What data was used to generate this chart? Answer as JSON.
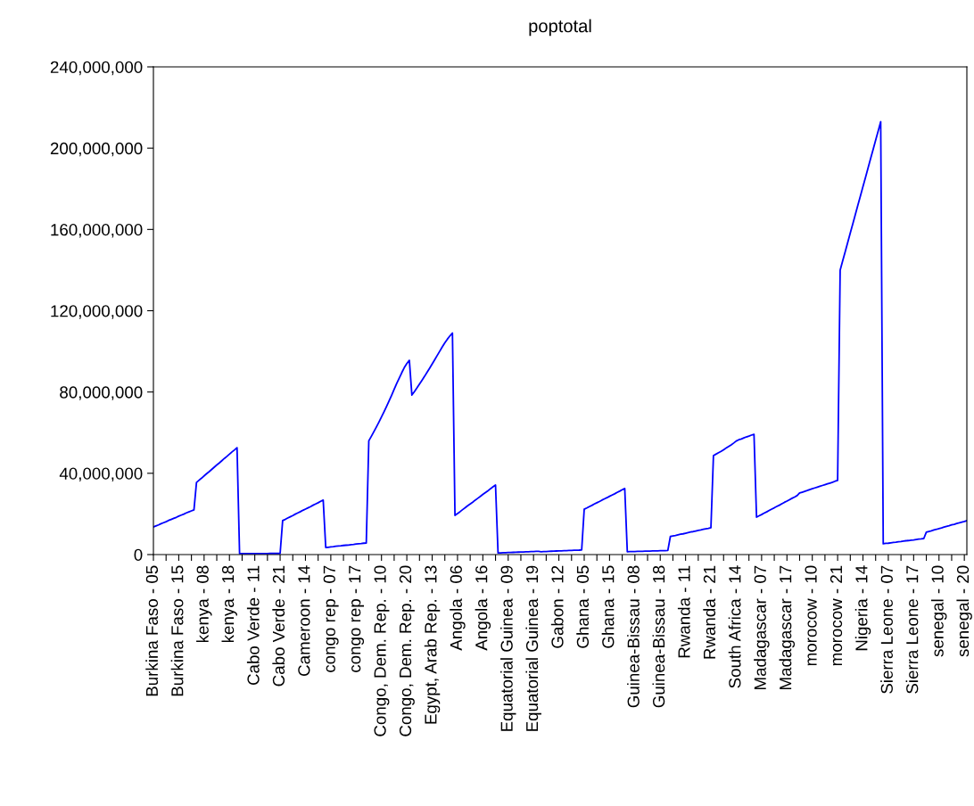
{
  "chart_data": {
    "type": "line",
    "title": "poptotal",
    "categories": [
      "Burkina Faso - 05",
      null,
      null,
      null,
      null,
      null,
      null,
      null,
      null,
      null,
      "Burkina Faso - 15",
      null,
      null,
      null,
      null,
      null,
      null,
      null,
      null,
      null,
      "kenya - 08",
      null,
      null,
      null,
      null,
      null,
      null,
      null,
      null,
      null,
      "kenya - 18",
      null,
      null,
      null,
      null,
      null,
      null,
      null,
      null,
      null,
      "Cabo Verde - 11",
      null,
      null,
      null,
      null,
      null,
      null,
      null,
      null,
      null,
      "Cabo Verde - 21",
      null,
      null,
      null,
      null,
      null,
      null,
      null,
      null,
      null,
      "Cameroon - 14",
      null,
      null,
      null,
      null,
      null,
      null,
      null,
      null,
      null,
      "congo rep - 07",
      null,
      null,
      null,
      null,
      null,
      null,
      null,
      null,
      null,
      "congo rep - 17",
      null,
      null,
      null,
      null,
      null,
      null,
      null,
      null,
      null,
      "Congo, Dem. Rep. - 10",
      null,
      null,
      null,
      null,
      null,
      null,
      null,
      null,
      null,
      "Congo, Dem. Rep. - 20",
      null,
      null,
      null,
      null,
      null,
      null,
      null,
      null,
      null,
      "Egypt, Arab Rep. - 13",
      null,
      null,
      null,
      null,
      null,
      null,
      null,
      null,
      null,
      "Angola - 06",
      null,
      null,
      null,
      null,
      null,
      null,
      null,
      null,
      null,
      "Angola - 16",
      null,
      null,
      null,
      null,
      null,
      null,
      null,
      null,
      null,
      "Equatorial Guinea - 09",
      null,
      null,
      null,
      null,
      null,
      null,
      null,
      null,
      null,
      "Equatorial Guinea - 19",
      null,
      null,
      null,
      null,
      null,
      null,
      null,
      null,
      null,
      "Gabon - 12",
      null,
      null,
      null,
      null,
      null,
      null,
      null,
      null,
      null,
      "Ghana - 05",
      null,
      null,
      null,
      null,
      null,
      null,
      null,
      null,
      null,
      "Ghana - 15",
      null,
      null,
      null,
      null,
      null,
      null,
      null,
      null,
      null,
      "Guinea-Bissau - 08",
      null,
      null,
      null,
      null,
      null,
      null,
      null,
      null,
      null,
      "Guinea-Bissau - 18",
      null,
      null,
      null,
      null,
      null,
      null,
      null,
      null,
      null,
      "Rwanda - 11",
      null,
      null,
      null,
      null,
      null,
      null,
      null,
      null,
      null,
      "Rwanda - 21",
      null,
      null,
      null,
      null,
      null,
      null,
      null,
      null,
      null,
      "South Africa - 14",
      null,
      null,
      null,
      null,
      null,
      null,
      null,
      null,
      null,
      "Madagascar - 07",
      null,
      null,
      null,
      null,
      null,
      null,
      null,
      null,
      null,
      "Madagascar - 17",
      null,
      null,
      null,
      null,
      null,
      null,
      null,
      null,
      null,
      "morocow - 10",
      null,
      null,
      null,
      null,
      null,
      null,
      null,
      null,
      null,
      "morocow - 21",
      null,
      null,
      null,
      null,
      null,
      null,
      null,
      null,
      null,
      "Nigeria - 14",
      null,
      null,
      null,
      null,
      null,
      null,
      null,
      null,
      null,
      "Sierra Leone - 07",
      null,
      null,
      null,
      null,
      null,
      null,
      null,
      null,
      null,
      "Sierra Leone - 17",
      null,
      null,
      null,
      null,
      null,
      null,
      null,
      null,
      null,
      "senegal - 10",
      null,
      null,
      null,
      null,
      null,
      null,
      null,
      null,
      null,
      "senegal - 20",
      null
    ],
    "series": [
      {
        "color": "#0000ff",
        "values": [
          13600000,
          14100000,
          14600000,
          15200000,
          15700000,
          16200000,
          16800000,
          17300000,
          17800000,
          18300000,
          18900000,
          19400000,
          19900000,
          20500000,
          21000000,
          21500000,
          22000000,
          35500000,
          36600000,
          37600000,
          38700000,
          39800000,
          40800000,
          41900000,
          43000000,
          44100000,
          45100000,
          46200000,
          47300000,
          48300000,
          49400000,
          50500000,
          51500000,
          52600000,
          480000,
          490000,
          490000,
          500000,
          500000,
          500000,
          510000,
          510000,
          520000,
          520000,
          530000,
          530000,
          540000,
          540000,
          550000,
          550000,
          560000,
          16700000,
          17300000,
          18000000,
          18600000,
          19200000,
          19900000,
          20500000,
          21100000,
          21800000,
          22400000,
          23000000,
          23600000,
          24300000,
          24900000,
          25500000,
          26200000,
          26800000,
          3500000,
          3600000,
          3800000,
          3900000,
          4100000,
          4200000,
          4300000,
          4500000,
          4600000,
          4700000,
          4900000,
          5000000,
          5200000,
          5300000,
          5400000,
          5600000,
          5700000,
          56000000,
          58200000,
          60500000,
          62800000,
          65200000,
          67700000,
          70300000,
          72900000,
          75600000,
          78400000,
          81300000,
          84200000,
          86800000,
          89500000,
          92000000,
          94000000,
          95600000,
          78500000,
          80200000,
          82000000,
          83900000,
          85800000,
          87700000,
          89700000,
          91700000,
          93800000,
          95900000,
          98000000,
          100100000,
          102200000,
          104200000,
          106000000,
          107600000,
          109000000,
          19300000,
          20200000,
          21100000,
          22100000,
          23000000,
          24000000,
          24900000,
          25800000,
          26800000,
          27700000,
          28600000,
          29600000,
          30500000,
          31400000,
          32400000,
          33300000,
          34200000,
          800000,
          850000,
          900000,
          950000,
          1000000,
          1050000,
          1100000,
          1150000,
          1200000,
          1250000,
          1300000,
          1350000,
          1400000,
          1450000,
          1500000,
          1550000,
          1600000,
          1400000,
          1450000,
          1500000,
          1600000,
          1650000,
          1700000,
          1750000,
          1800000,
          1850000,
          1900000,
          1950000,
          2000000,
          2050000,
          2100000,
          2150000,
          2200000,
          2300000,
          22300000,
          22900000,
          23600000,
          24200000,
          24900000,
          25500000,
          26100000,
          26800000,
          27400000,
          28000000,
          28700000,
          29300000,
          29900000,
          30600000,
          31200000,
          31900000,
          32500000,
          1400000,
          1440000,
          1480000,
          1510000,
          1550000,
          1590000,
          1630000,
          1660000,
          1700000,
          1740000,
          1780000,
          1810000,
          1850000,
          1890000,
          1930000,
          1960000,
          2000000,
          8900000,
          9200000,
          9400000,
          9700000,
          10000000,
          10200000,
          10500000,
          10800000,
          11100000,
          11300000,
          11600000,
          11900000,
          12100000,
          12400000,
          12700000,
          12900000,
          13200000,
          48700000,
          49400000,
          50100000,
          50800000,
          51600000,
          52400000,
          53200000,
          54000000,
          54900000,
          55900000,
          56500000,
          56900000,
          57400000,
          57900000,
          58300000,
          58800000,
          59200000,
          18400000,
          19100000,
          19700000,
          20400000,
          21000000,
          21700000,
          22400000,
          23000000,
          23700000,
          24300000,
          25000000,
          25700000,
          26300000,
          27000000,
          27700000,
          28300000,
          29000000,
          30300000,
          30700000,
          31100000,
          31500000,
          32000000,
          32400000,
          32800000,
          33200000,
          33600000,
          34000000,
          34400000,
          34800000,
          35200000,
          35600000,
          36100000,
          36500000,
          140000000,
          144600000,
          149100000,
          153700000,
          158300000,
          162800000,
          167400000,
          172000000,
          176500000,
          181100000,
          185600000,
          190200000,
          194800000,
          199300000,
          203900000,
          208400000,
          213000000,
          5300000,
          5500000,
          5600000,
          5800000,
          6000000,
          6100000,
          6300000,
          6400000,
          6600000,
          6800000,
          6900000,
          7100000,
          7200000,
          7400000,
          7600000,
          7700000,
          7900000,
          11000000,
          11400000,
          11700000,
          12100000,
          12400000,
          12800000,
          13100000,
          13500000,
          13900000,
          14200000,
          14600000,
          14900000,
          15300000,
          15600000,
          16000000,
          16300000,
          16700000
        ]
      }
    ],
    "ylim": [
      0,
      240000000
    ],
    "yticks": [
      0,
      {
        "value": 40000000,
        "label": "40,000,000"
      },
      {
        "value": 80000000,
        "label": "80,000,000"
      },
      {
        "value": 120000000,
        "label": "120,000,000"
      },
      {
        "value": 160000000,
        "label": "160,000,000"
      },
      {
        "value": 200000000,
        "label": "200,000,000"
      },
      {
        "value": 240000000,
        "label": "240,000,000"
      }
    ],
    "grid": false,
    "marker": "none",
    "line_style": "solid"
  }
}
